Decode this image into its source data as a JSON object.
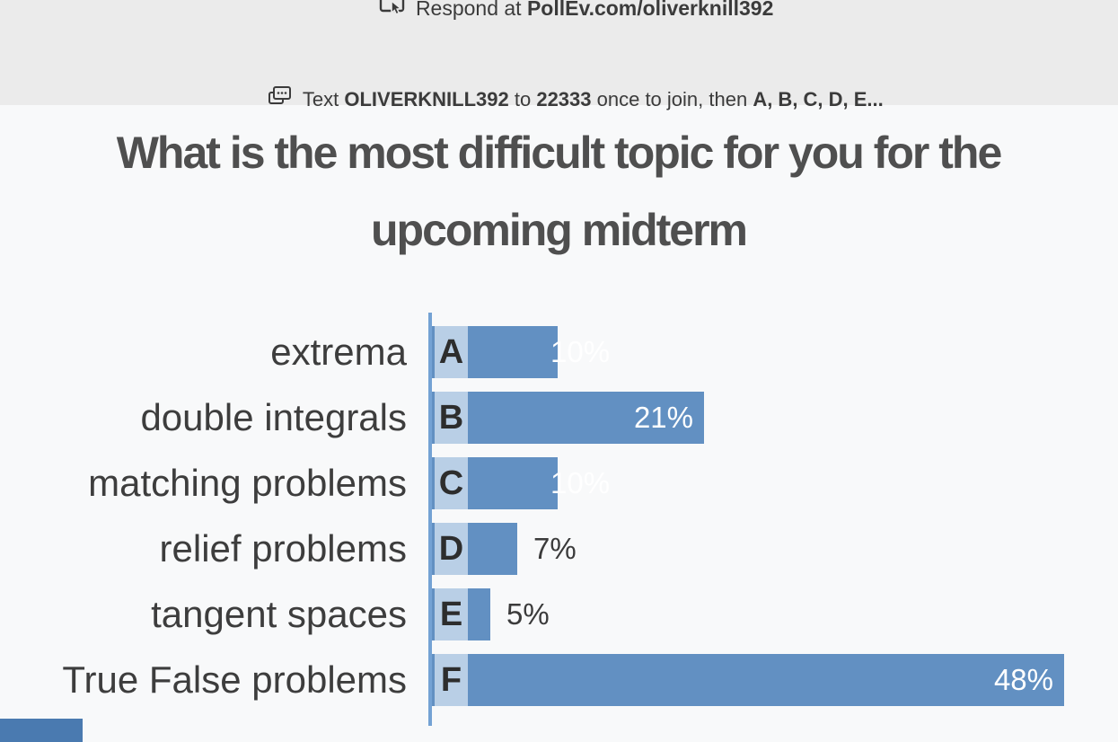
{
  "header": {
    "line1": {
      "prefix": "Respond at ",
      "bold": "PollEv.com/oliverknill392"
    },
    "line2": {
      "prefix": "Text ",
      "username": "OLIVERKNILL392",
      "mid1": " to ",
      "number": "22333",
      "mid2": " once to join, then ",
      "options": "A, B, C, D, E..."
    },
    "icons": [
      "screen-cursor-icon",
      "sms-bubble-icon"
    ]
  },
  "title": {
    "line1": "What is the most difficult topic for you for the",
    "line2": "upcoming midterm"
  },
  "chart_data": {
    "type": "bar",
    "orientation": "horizontal",
    "title": "What is the most difficult topic for you for the upcoming midterm",
    "categories": [
      "extrema",
      "double integrals",
      "matching problems",
      "relief problems",
      "tangent spaces",
      "True False problems"
    ],
    "option_letters": [
      "A",
      "B",
      "C",
      "D",
      "E",
      "F"
    ],
    "values": [
      10,
      21,
      10,
      7,
      5,
      48
    ],
    "value_labels": [
      "10%",
      "21%",
      "10%",
      "7%",
      "5%",
      "48%"
    ],
    "unit": "%",
    "xlim": [
      0,
      52
    ],
    "grid": false,
    "legend": "none",
    "label_styles": [
      "edge",
      "inside",
      "edge",
      "outside",
      "outside",
      "inside"
    ],
    "colors": {
      "bar": "#6290c2",
      "chip": "#b9cfe6",
      "axis": "#74a2d4",
      "label_inside": "#ffffff",
      "label_outside": "#3b3b3b",
      "corner": "#4a7ab0",
      "header_bg": "#ebebeb",
      "page_bg": "#f8f9fa"
    }
  }
}
